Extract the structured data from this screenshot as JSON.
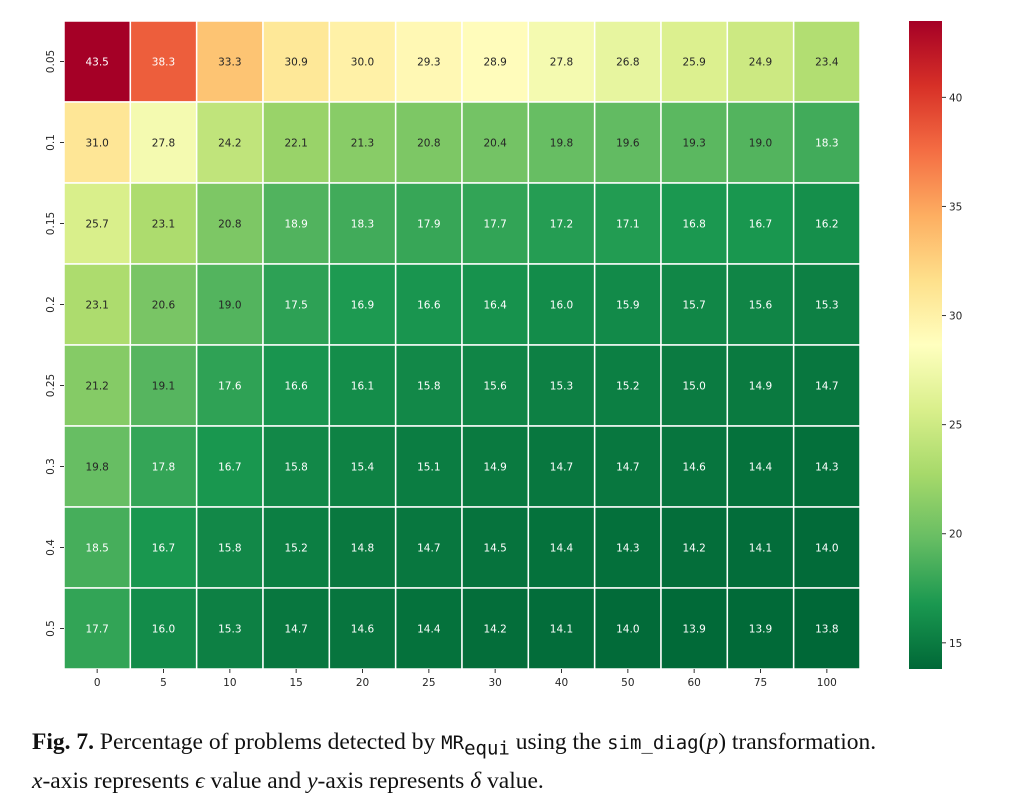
{
  "chart_data": {
    "type": "heatmap",
    "x_tick_labels": [
      "0",
      "5",
      "10",
      "15",
      "20",
      "25",
      "30",
      "40",
      "50",
      "60",
      "75",
      "100"
    ],
    "y_tick_labels": [
      "0.05",
      "0.1",
      "0.15",
      "0.2",
      "0.25",
      "0.3",
      "0.4",
      "0.5"
    ],
    "values": [
      [
        "43.5",
        "38.3",
        "33.3",
        "30.9",
        "30.0",
        "29.3",
        "28.9",
        "27.8",
        "26.8",
        "25.9",
        "24.9",
        "23.4"
      ],
      [
        "31.0",
        "27.8",
        "24.2",
        "22.1",
        "21.3",
        "20.8",
        "20.4",
        "19.8",
        "19.6",
        "19.3",
        "19.0",
        "18.3"
      ],
      [
        "25.7",
        "23.1",
        "20.8",
        "18.9",
        "18.3",
        "17.9",
        "17.7",
        "17.2",
        "17.1",
        "16.8",
        "16.7",
        "16.2"
      ],
      [
        "23.1",
        "20.6",
        "19.0",
        "17.5",
        "16.9",
        "16.6",
        "16.4",
        "16.0",
        "15.9",
        "15.7",
        "15.6",
        "15.3"
      ],
      [
        "21.2",
        "19.1",
        "17.6",
        "16.6",
        "16.1",
        "15.8",
        "15.6",
        "15.3",
        "15.2",
        "15.0",
        "14.9",
        "14.7"
      ],
      [
        "19.8",
        "17.8",
        "16.7",
        "15.8",
        "15.4",
        "15.1",
        "14.9",
        "14.7",
        "14.7",
        "14.6",
        "14.4",
        "14.3"
      ],
      [
        "18.5",
        "16.7",
        "15.8",
        "15.2",
        "14.8",
        "14.7",
        "14.5",
        "14.4",
        "14.3",
        "14.2",
        "14.1",
        "14.0"
      ],
      [
        "17.7",
        "16.0",
        "15.3",
        "14.7",
        "14.6",
        "14.4",
        "14.2",
        "14.1",
        "14.0",
        "13.9",
        "13.9",
        "13.8"
      ]
    ],
    "colormap": "RdYlGn_r",
    "vmin": 13.8,
    "vmax": 43.5,
    "colorbar_ticks": [
      "15",
      "20",
      "25",
      "30",
      "35",
      "40"
    ]
  },
  "caption": {
    "label": "Fig. 7.",
    "text_1": "Percentage of problems detected by",
    "mr": "MR",
    "mr_sub": "equi",
    "text_2": "using the",
    "transform": "sim_diag",
    "arg_open": "(",
    "arg": "p",
    "arg_close": ")",
    "text_3": "transformation.",
    "x_var": "x",
    "text_4": "-axis represents",
    "eps": "ϵ",
    "text_5": "value and",
    "y_var": "y",
    "text_6": "-axis represents",
    "delta": "δ",
    "text_7": "value."
  }
}
